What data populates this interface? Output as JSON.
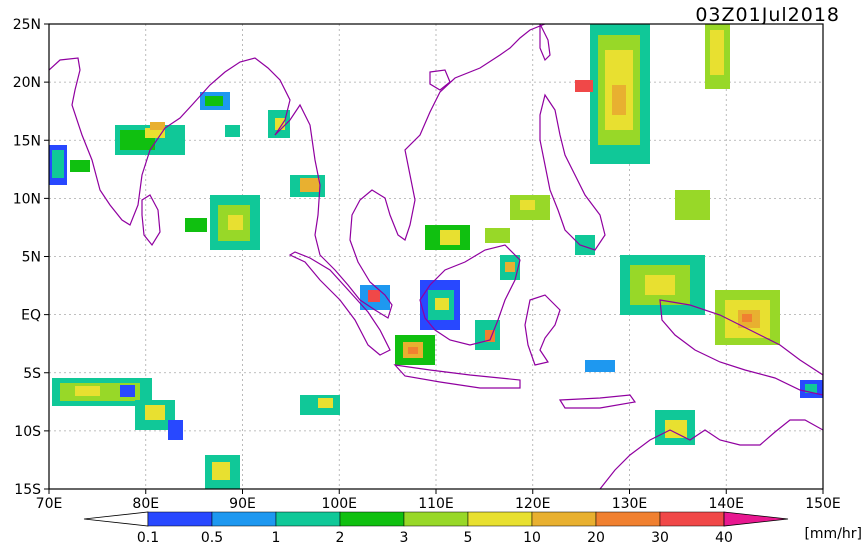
{
  "title": "03Z01Jul2018",
  "unit": "[mm/hr]",
  "y_axis": {
    "labels": [
      "25N",
      "20N",
      "15N",
      "10N",
      "5N",
      "EQ",
      "5S",
      "10S",
      "15S"
    ]
  },
  "x_axis": {
    "labels": [
      "70E",
      "80E",
      "90E",
      "100E",
      "110E",
      "120E",
      "130E",
      "140E",
      "150E"
    ]
  },
  "colorbar": {
    "labels": [
      "0.1",
      "0.5",
      "1",
      "2",
      "3",
      "5",
      "10",
      "20",
      "30",
      "40"
    ],
    "colors": [
      "#2848ff",
      "#1e98f0",
      "#10c898",
      "#10c010",
      "#98d828",
      "#e8e030",
      "#e8b030",
      "#f08030",
      "#f04848",
      "#e81890"
    ],
    "left_arrow_color": "#ffffff",
    "right_arrow_color": "#e81890"
  },
  "colors": {
    "coastline": "#9000a0",
    "grid": "#aaaaaa",
    "frame": "#000000"
  },
  "map_extent": {
    "lon": [
      70,
      150
    ],
    "lat": [
      -15,
      25
    ]
  }
}
